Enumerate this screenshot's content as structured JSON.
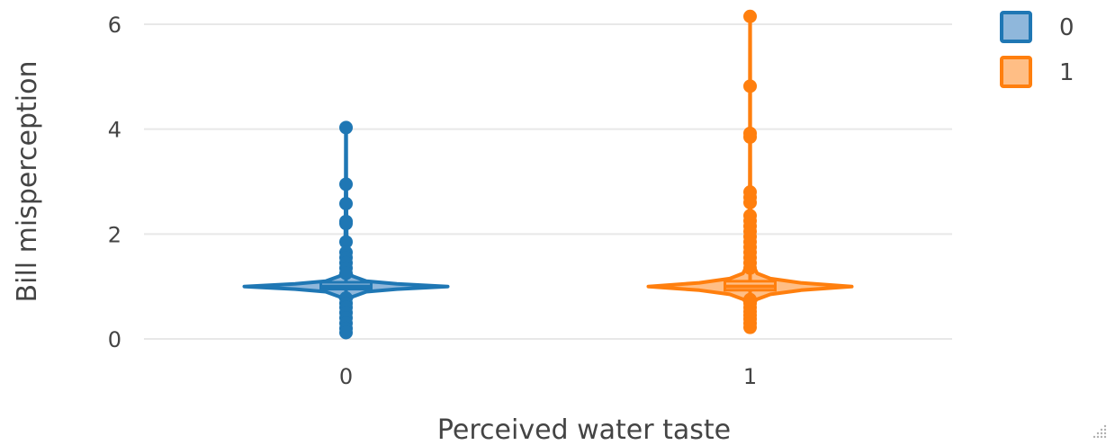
{
  "chart_data": {
    "type": "violin",
    "xlabel": "Perceived water taste",
    "ylabel": "Bill misperception",
    "categories": [
      "0",
      "1"
    ],
    "ylim": [
      -0.3,
      6.3
    ],
    "yticks": [
      0,
      2,
      4,
      6
    ],
    "yticklabels": [
      "0",
      "2",
      "4",
      "6"
    ],
    "grid": true,
    "legend_position": "top-right",
    "series": [
      {
        "name": "0",
        "category": "0",
        "color": "#1f77b4",
        "fill": "#8fb7db",
        "median": 1.0,
        "q1": 0.95,
        "q3": 1.08,
        "whisker_low": 0.1,
        "whisker_high": 4.03,
        "points": [
          4.03,
          2.95,
          2.58,
          2.24,
          2.2,
          1.85,
          1.65,
          1.55,
          1.45,
          1.35,
          1.25,
          0.78,
          0.68,
          0.6,
          0.5,
          0.4,
          0.3,
          0.2,
          0.12
        ],
        "density": [
          [
            0.1,
            0.003
          ],
          [
            0.3,
            0.006
          ],
          [
            0.5,
            0.012
          ],
          [
            0.7,
            0.03
          ],
          [
            0.8,
            0.06
          ],
          [
            0.9,
            0.2
          ],
          [
            0.95,
            0.5
          ],
          [
            1.0,
            1.0
          ],
          [
            1.05,
            0.5
          ],
          [
            1.1,
            0.2
          ],
          [
            1.2,
            0.06
          ],
          [
            1.3,
            0.03
          ],
          [
            1.5,
            0.014
          ],
          [
            1.8,
            0.008
          ],
          [
            2.2,
            0.005
          ],
          [
            2.6,
            0.004
          ],
          [
            3.0,
            0.003
          ],
          [
            4.03,
            0.002
          ]
        ]
      },
      {
        "name": "1",
        "category": "1",
        "color": "#ff7f0e",
        "fill": "#ffbe85",
        "median": 1.0,
        "q1": 0.93,
        "q3": 1.1,
        "whisker_low": 0.22,
        "whisker_high": 6.15,
        "points": [
          6.15,
          4.82,
          3.92,
          3.85,
          2.8,
          2.7,
          2.6,
          2.35,
          2.25,
          2.15,
          2.05,
          1.95,
          1.85,
          1.75,
          1.65,
          1.55,
          1.45,
          1.35,
          0.75,
          0.68,
          0.6,
          0.52,
          0.45,
          0.38,
          0.3,
          0.22
        ],
        "density": [
          [
            0.22,
            0.003
          ],
          [
            0.4,
            0.008
          ],
          [
            0.6,
            0.02
          ],
          [
            0.75,
            0.06
          ],
          [
            0.85,
            0.2
          ],
          [
            0.93,
            0.5
          ],
          [
            1.0,
            1.0
          ],
          [
            1.07,
            0.5
          ],
          [
            1.15,
            0.2
          ],
          [
            1.25,
            0.07
          ],
          [
            1.4,
            0.03
          ],
          [
            1.7,
            0.014
          ],
          [
            2.1,
            0.008
          ],
          [
            2.5,
            0.005
          ],
          [
            3.0,
            0.003
          ],
          [
            4.0,
            0.002
          ],
          [
            5.0,
            0.0015
          ],
          [
            6.15,
            0.001
          ]
        ]
      }
    ]
  }
}
